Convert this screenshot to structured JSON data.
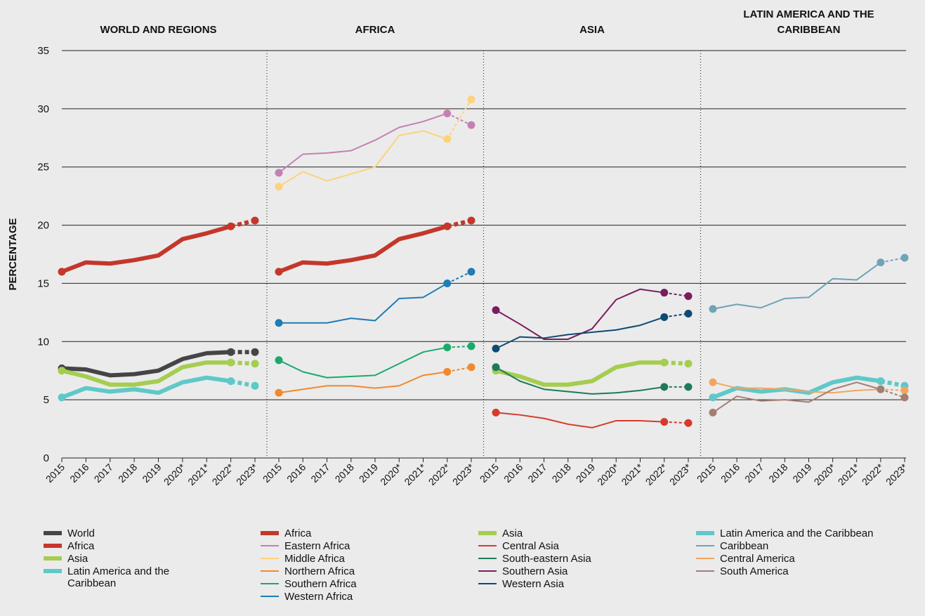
{
  "chart_data": [
    {
      "type": "line",
      "title": "WORLD AND REGIONS",
      "y_label": "PERCENTAGE",
      "categories": [
        "2015",
        "2016",
        "2017",
        "2018",
        "2019",
        "2020*",
        "2021*",
        "2022*",
        "2023*"
      ],
      "ylim": [
        0,
        35
      ],
      "yticks": [
        0,
        5,
        10,
        15,
        20,
        25,
        30,
        35
      ],
      "grid": true,
      "series": [
        {
          "name": "World",
          "color": "#454545",
          "style": "thick",
          "values": [
            7.7,
            7.6,
            7.1,
            7.2,
            7.5,
            8.5,
            9.0,
            9.1,
            9.1
          ]
        },
        {
          "name": "Africa",
          "color": "#c4372b",
          "style": "thick",
          "values": [
            16.0,
            16.8,
            16.7,
            17.0,
            17.4,
            18.8,
            19.3,
            19.9,
            20.4
          ]
        },
        {
          "name": "Asia",
          "color": "#a5cd50",
          "style": "thick",
          "values": [
            7.5,
            7.0,
            6.3,
            6.3,
            6.6,
            7.8,
            8.2,
            8.2,
            8.1
          ]
        },
        {
          "name": "Latin America and the Caribbean",
          "color": "#5fc8c8",
          "style": "thick",
          "values": [
            5.2,
            6.0,
            5.7,
            5.9,
            5.6,
            6.5,
            6.9,
            6.6,
            6.2
          ]
        }
      ]
    },
    {
      "type": "line",
      "title": "AFRICA",
      "categories": [
        "2015",
        "2016",
        "2017",
        "2018",
        "2019",
        "2020*",
        "2021*",
        "2022*",
        "2023*"
      ],
      "ylim": [
        0,
        35
      ],
      "yticks": [
        0,
        5,
        10,
        15,
        20,
        25,
        30,
        35
      ],
      "grid": true,
      "series": [
        {
          "name": "Africa",
          "color": "#c4372b",
          "style": "thick",
          "values": [
            16.0,
            16.8,
            16.7,
            17.0,
            17.4,
            18.8,
            19.3,
            19.9,
            20.4
          ]
        },
        {
          "name": "Eastern Africa",
          "color": "#c480b4",
          "style": "thin",
          "values": [
            24.5,
            26.1,
            26.2,
            26.4,
            27.3,
            28.4,
            28.9,
            29.6,
            28.6
          ]
        },
        {
          "name": "Middle Africa",
          "color": "#fdd27c",
          "style": "thin",
          "values": [
            23.3,
            24.6,
            23.8,
            24.4,
            25.0,
            27.7,
            28.1,
            27.4,
            30.8
          ]
        },
        {
          "name": "Northern Africa",
          "color": "#f08a2c",
          "style": "thin",
          "values": [
            5.6,
            5.9,
            6.2,
            6.2,
            6.0,
            6.2,
            7.1,
            7.4,
            7.8
          ]
        },
        {
          "name": "Southern Africa",
          "color": "#1aaa6a",
          "style": "thin",
          "values": [
            8.4,
            7.4,
            6.9,
            7.0,
            7.1,
            8.1,
            9.1,
            9.5,
            9.6
          ]
        },
        {
          "name": "Western Africa",
          "color": "#1f7cb4",
          "style": "thin",
          "values": [
            11.6,
            11.6,
            11.6,
            12.0,
            11.8,
            13.7,
            13.8,
            15.0,
            16.0
          ]
        }
      ]
    },
    {
      "type": "line",
      "title": "ASIA",
      "categories": [
        "2015",
        "2016",
        "2017",
        "2018",
        "2019",
        "2020*",
        "2021*",
        "2022*",
        "2023*"
      ],
      "ylim": [
        0,
        35
      ],
      "yticks": [
        0,
        5,
        10,
        15,
        20,
        25,
        30,
        35
      ],
      "grid": true,
      "series": [
        {
          "name": "Asia",
          "color": "#a5cd50",
          "style": "thick",
          "values": [
            7.5,
            7.0,
            6.3,
            6.3,
            6.6,
            7.8,
            8.2,
            8.2,
            8.1
          ]
        },
        {
          "name": "Central Asia",
          "color": "#d9392b",
          "style": "thin",
          "values": [
            3.9,
            3.7,
            3.4,
            2.9,
            2.6,
            3.2,
            3.2,
            3.1,
            3.0
          ]
        },
        {
          "name": "South-eastern Asia",
          "color": "#1e7a5a",
          "style": "thin",
          "values": [
            7.8,
            6.6,
            5.9,
            5.7,
            5.5,
            5.6,
            5.8,
            6.1,
            6.1
          ]
        },
        {
          "name": "Southern Asia",
          "color": "#7a1d5e",
          "style": "thin",
          "values": [
            12.7,
            11.5,
            10.2,
            10.2,
            11.1,
            13.6,
            14.5,
            14.2,
            13.9
          ]
        },
        {
          "name": "Western Asia",
          "color": "#0e4a72",
          "style": "thin",
          "values": [
            9.4,
            10.4,
            10.3,
            10.6,
            10.8,
            11.0,
            11.4,
            12.1,
            12.4
          ]
        }
      ]
    },
    {
      "type": "line",
      "title": "LATIN AMERICA AND THE CARIBBEAN",
      "categories": [
        "2015",
        "2016",
        "2017",
        "2018",
        "2019",
        "2020*",
        "2021*",
        "2022*",
        "2023*"
      ],
      "ylim": [
        0,
        35
      ],
      "yticks": [
        0,
        5,
        10,
        15,
        20,
        25,
        30,
        35
      ],
      "grid": true,
      "series": [
        {
          "name": "Latin America and the Caribbean",
          "color": "#5fc8c8",
          "style": "thick",
          "values": [
            5.2,
            6.0,
            5.7,
            5.9,
            5.6,
            6.5,
            6.9,
            6.6,
            6.2
          ]
        },
        {
          "name": "Caribbean",
          "color": "#6fa3b8",
          "style": "thin",
          "values": [
            12.8,
            13.2,
            12.9,
            13.7,
            13.8,
            15.4,
            15.3,
            16.8,
            17.2
          ]
        },
        {
          "name": "Central America",
          "color": "#f4a460",
          "style": "thin",
          "values": [
            6.5,
            6.0,
            6.0,
            5.9,
            5.7,
            5.6,
            5.8,
            5.9,
            5.8
          ]
        },
        {
          "name": "South America",
          "color": "#a37e73",
          "style": "thin",
          "values": [
            3.9,
            5.3,
            4.9,
            5.0,
            4.8,
            5.9,
            6.5,
            5.9,
            5.2
          ]
        }
      ]
    }
  ]
}
